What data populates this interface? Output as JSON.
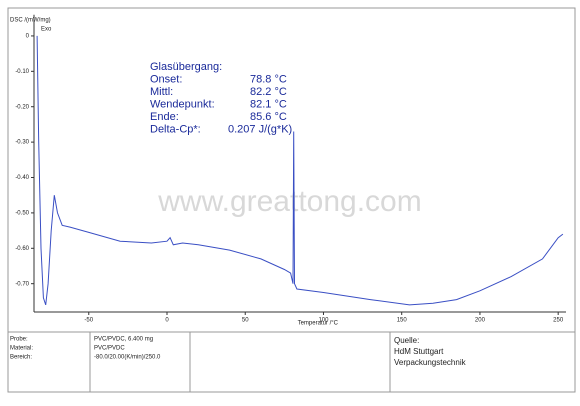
{
  "chart_data": {
    "type": "line",
    "y_label": "DSC /(mW/mg)",
    "y_note": "Exo",
    "x_label": "Temperatur /°C",
    "watermark": "www.greattong.com",
    "x": [
      -83,
      -82,
      -80.5,
      -79,
      -77.5,
      -76,
      -74,
      -72,
      -70,
      -67,
      -62,
      -50,
      -30,
      -10,
      0,
      2,
      4,
      10,
      20,
      40,
      60,
      75,
      79,
      80.5,
      81,
      81.5,
      83,
      100,
      130,
      155,
      170,
      185,
      200,
      220,
      240,
      250,
      253
    ],
    "values": [
      0.0,
      -0.3,
      -0.6,
      -0.74,
      -0.76,
      -0.7,
      -0.55,
      -0.45,
      -0.5,
      -0.535,
      -0.54,
      -0.555,
      -0.58,
      -0.585,
      -0.58,
      -0.57,
      -0.59,
      -0.585,
      -0.59,
      -0.605,
      -0.63,
      -0.66,
      -0.67,
      -0.7,
      -0.27,
      -0.7,
      -0.715,
      -0.725,
      -0.745,
      -0.76,
      -0.755,
      -0.745,
      -0.72,
      -0.68,
      -0.63,
      -0.57,
      -0.56
    ],
    "color": "#3a4fc4",
    "xlim": [
      -85,
      255
    ],
    "ylim": [
      -0.78,
      0.06
    ],
    "xticks": [
      -50,
      0,
      50,
      100,
      150,
      200,
      250
    ],
    "yticks": [
      0,
      {
        "value": -0.1,
        "label": "-0.10"
      },
      {
        "value": -0.2,
        "label": "-0.20"
      },
      {
        "value": -0.3,
        "label": "-0.30"
      },
      {
        "value": -0.4,
        "label": "-0.40"
      },
      {
        "value": -0.5,
        "label": "-0.50"
      },
      {
        "value": -0.6,
        "label": "-0.60"
      },
      {
        "value": -0.7,
        "label": "-0.70"
      }
    ],
    "annotations": [
      [
        "Glasübergang:",
        ""
      ],
      [
        "Onset:",
        "78.8 °C"
      ],
      [
        "Mittl:",
        "82.2 °C"
      ],
      [
        "Wendepunkt:",
        "82.1 °C"
      ],
      [
        "Ende:",
        "85.6 °C"
      ],
      [
        "Delta-Cp*:",
        "0.207 J/(g*K)"
      ]
    ]
  },
  "footer": {
    "rows": [
      [
        "Probe:",
        "PVC/PVDC, 6.400 mg"
      ],
      [
        "Material:",
        "PVC/PVDC"
      ],
      [
        "Bereich:",
        "-80.0/20.00(K/min)/250.0"
      ]
    ],
    "source": [
      "Quelle:",
      "HdM Stuttgart",
      "Verpackungstechnik"
    ]
  }
}
